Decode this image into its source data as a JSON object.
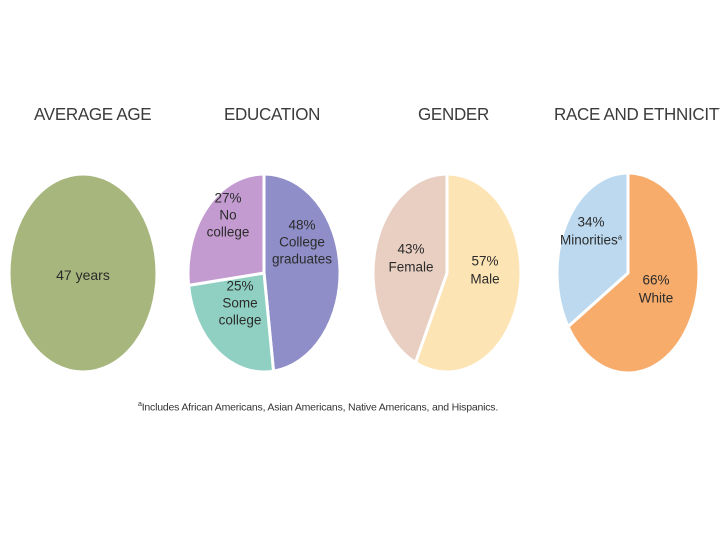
{
  "titles": {
    "age": "AVERAGE AGE",
    "education": "EDUCATION",
    "gender": "GENDER",
    "race": "RACE AND ETHNICITY"
  },
  "footnote": {
    "marker": "a",
    "text": "Includes African Americans, Asian Americans, Native Americans, and Hispanics."
  },
  "chart_data": [
    {
      "type": "pie",
      "title": "AVERAGE AGE",
      "categories": [
        "47 years"
      ],
      "values": [
        100
      ],
      "labels": [
        [
          "47 years"
        ]
      ],
      "colors": [
        "#a7b67d"
      ]
    },
    {
      "type": "pie",
      "title": "EDUCATION",
      "categories": [
        "College graduates",
        "Some college",
        "No college"
      ],
      "values": [
        48,
        25,
        27
      ],
      "labels": [
        [
          "48%",
          "College",
          "graduates"
        ],
        [
          "25%",
          "Some",
          "college"
        ],
        [
          "27%",
          "No",
          "college"
        ]
      ],
      "colors": [
        "#8f8ec8",
        "#8fd0c2",
        "#c39bd0"
      ]
    },
    {
      "type": "pie",
      "title": "GENDER",
      "categories": [
        "Male",
        "Female"
      ],
      "values": [
        57,
        43
      ],
      "labels": [
        [
          "57%",
          "Male"
        ],
        [
          "43%",
          "Female"
        ]
      ],
      "colors": [
        "#fde4b4",
        "#e8cfc2"
      ]
    },
    {
      "type": "pie",
      "title": "RACE AND ETHNICITY",
      "categories": [
        "White",
        "Minorities"
      ],
      "values": [
        66,
        34
      ],
      "labels": [
        [
          "66%",
          "White"
        ],
        [
          "34%",
          "Minorities",
          "a"
        ]
      ],
      "colors": [
        "#f7ac6c",
        "#bcd9ef"
      ]
    }
  ]
}
